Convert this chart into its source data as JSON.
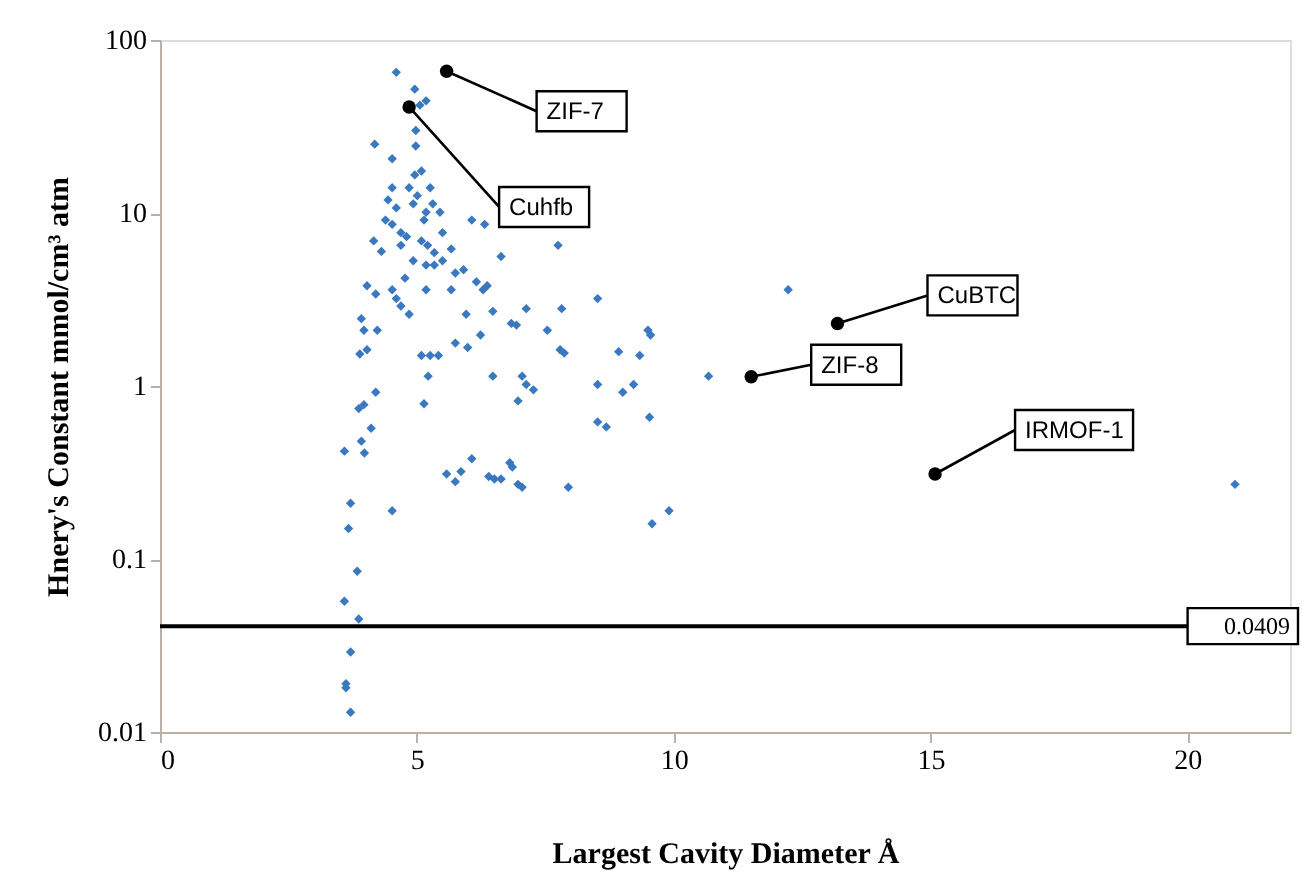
{
  "chart_data": {
    "type": "scatter",
    "xlabel": "Largest Cavity Diameter Å",
    "ylabel": "Hnery's Constant  mmol/cm³ atm",
    "log": "y",
    "grid": false,
    "xlim": [
      0,
      22
    ],
    "xticks": [
      0,
      5,
      10,
      15,
      20
    ],
    "ylim": [
      0.01,
      100
    ],
    "yticks": [
      0.01,
      0.1,
      1,
      10,
      100
    ],
    "series": [
      {
        "color": "#3a78c0",
        "marker": "diamond",
        "x": [
          3.59,
          3.71,
          3.67,
          3.84,
          3.59,
          3.87,
          3.71,
          3.62,
          3.62,
          3.71,
          3.87,
          3.97,
          4.11,
          4.2,
          3.92,
          3.98,
          4.52,
          3.89,
          4.03,
          3.92,
          3.97,
          4.23,
          4.03,
          4.2,
          4.16,
          4.31,
          4.18,
          4.52,
          4.6,
          4.52,
          4.44,
          4.39,
          4.52,
          4.6,
          4.69,
          4.8,
          4.69,
          4.52,
          4.6,
          4.69,
          4.85,
          4.77,
          4.93,
          4.85,
          4.93,
          4.96,
          5.01,
          5.09,
          4.96,
          5.06,
          5.18,
          4.98,
          4.98,
          5.18,
          5.14,
          5.26,
          5.31,
          5.09,
          5.21,
          5.34,
          5.18,
          5.34,
          5.18,
          5.09,
          5.14,
          5.22,
          5.26,
          5.42,
          5.45,
          5.5,
          5.67,
          5.75,
          5.67,
          5.5,
          5.91,
          5.75,
          5.96,
          5.99,
          6.07,
          6.32,
          6.16,
          6.29,
          6.37,
          6.24,
          6.48,
          6.64,
          6.48,
          5.58,
          5.75,
          5.86,
          6.07,
          6.4,
          6.51,
          6.64,
          6.81,
          6.86,
          6.97,
          7.05,
          6.84,
          6.94,
          7.13,
          7.05,
          7.13,
          7.27,
          6.97,
          7.54,
          7.75,
          7.82,
          7.79,
          7.87,
          7.95,
          8.52,
          8.52,
          8.52,
          8.69,
          8.93,
          9.01,
          9.22,
          9.34,
          9.5,
          9.55,
          9.53,
          9.58,
          9.91,
          10.68,
          12.23,
          20.93
        ],
        "values": [
          0.42,
          0.21,
          0.15,
          0.085,
          0.057,
          0.045,
          0.029,
          0.019,
          0.018,
          0.013,
          0.74,
          0.78,
          0.57,
          0.92,
          0.48,
          0.41,
          0.19,
          1.53,
          1.62,
          2.45,
          2.1,
          2.1,
          3.8,
          3.4,
          6.9,
          6.0,
          25,
          20.6,
          65,
          14,
          11.9,
          9.1,
          8.6,
          10.7,
          7.7,
          7.3,
          6.5,
          3.6,
          3.2,
          2.9,
          2.6,
          4.2,
          5.3,
          14,
          11.3,
          16.6,
          12.6,
          17.5,
          52,
          42,
          44.5,
          30,
          24.4,
          10.1,
          9.1,
          14,
          11.3,
          6.9,
          6.5,
          5.9,
          5.0,
          5.0,
          3.6,
          1.5,
          0.79,
          1.14,
          1.5,
          1.5,
          10.1,
          7.7,
          6.2,
          4.5,
          3.6,
          5.3,
          4.7,
          1.77,
          2.6,
          1.67,
          9.1,
          8.6,
          4.0,
          3.6,
          3.8,
          1.97,
          2.7,
          5.6,
          1.14,
          0.31,
          0.28,
          0.32,
          0.38,
          0.3,
          0.29,
          0.29,
          0.36,
          0.34,
          0.27,
          0.26,
          2.3,
          2.25,
          2.8,
          1.14,
          1.02,
          0.95,
          0.82,
          2.1,
          6.5,
          2.8,
          1.62,
          1.55,
          0.26,
          3.2,
          1.02,
          0.62,
          0.58,
          1.58,
          0.92,
          1.02,
          1.5,
          2.1,
          1.97,
          0.66,
          0.16,
          0.19,
          1.14,
          3.6,
          0.27
        ]
      },
      {
        "color": "#000000",
        "marker": "circle",
        "x": [
          5.58,
          4.85,
          13.19,
          11.51,
          15.09
        ],
        "values": [
          66,
          41,
          2.3,
          1.13,
          0.31
        ]
      }
    ],
    "annotations": [
      {
        "text": "ZIF-7",
        "x": 5.58,
        "y": 66
      },
      {
        "text": "Cuhfb",
        "x": 4.85,
        "y": 41
      },
      {
        "text": "CuBTC",
        "x": 13.19,
        "y": 2.3
      },
      {
        "text": "ZIF-8",
        "x": 11.51,
        "y": 1.13
      },
      {
        "text": "IRMOF-1",
        "x": 15.09,
        "y": 0.31
      }
    ],
    "ref_lines": [
      {
        "axis": "y",
        "value": 0.0409,
        "label": "0.0409",
        "color": "#000000"
      }
    ]
  }
}
